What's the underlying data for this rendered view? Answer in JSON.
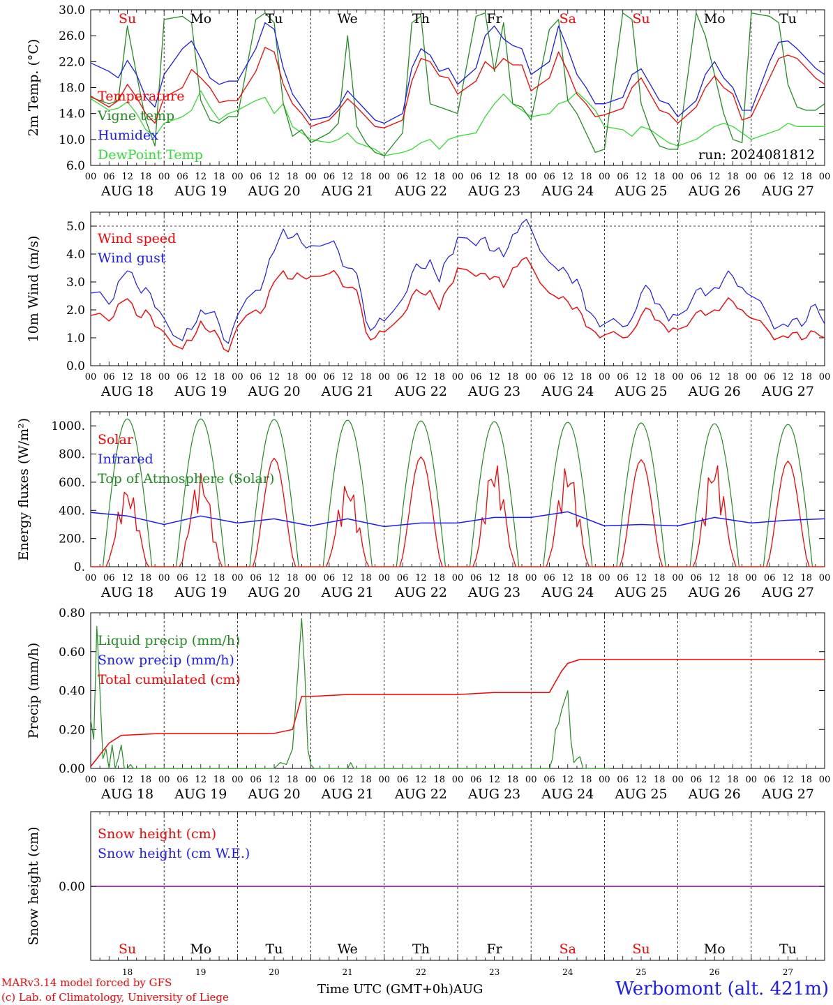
{
  "run_label": "run: 2024081812",
  "x_axis": {
    "hour_ticks": [
      "00",
      "06",
      "12",
      "18"
    ],
    "end_tick": "00",
    "dates": [
      "AUG 18",
      "AUG 19",
      "AUG 20",
      "AUG 21",
      "AUG 22",
      "AUG 23",
      "AUG 24",
      "AUG 25",
      "AUG 26",
      "AUG 27"
    ],
    "weekdays": [
      "Su",
      "Mo",
      "Tu",
      "We",
      "Th",
      "Fr",
      "Sa",
      "Su",
      "Mo",
      "Tu"
    ],
    "bottom_day_numbers": [
      "18",
      "19",
      "20",
      "21",
      "22",
      "23",
      "24",
      "25",
      "26",
      "27"
    ],
    "bottom_month": "AUG",
    "time_label": "Time UTC (GMT+0h)"
  },
  "colors": {
    "red": "#ff0000",
    "green": "#1f8f1f",
    "blue": "#1a1aff",
    "light_green": "#33dd33",
    "purple": "#8800aa",
    "weekend": "#ff0000",
    "weekday": "#000000"
  },
  "footer": {
    "credit_line1": "MARv3.14 model forced by GFS",
    "credit_line2": "(c) Lab. of Climatology, University of Liege",
    "station": "Werbomont (alt. 421m)"
  },
  "chart_data": [
    {
      "type": "line",
      "ylabel": "2m Temp. (°C)",
      "ylim": [
        6,
        30
      ],
      "yticks": [
        6,
        10,
        14,
        18,
        22,
        26,
        30
      ],
      "ytick_labels": [
        "6.0",
        "10.0",
        "14.0",
        "18.0",
        "22.0",
        "26.0",
        "30.0"
      ],
      "x_unit": "hours since AUG 18 00 UTC",
      "x": [
        0,
        6,
        9,
        12,
        15,
        18,
        21,
        24,
        30,
        33,
        36,
        39,
        42,
        45,
        48,
        54,
        57,
        60,
        63,
        66,
        69,
        72,
        78,
        81,
        84,
        87,
        90,
        93,
        96,
        102,
        105,
        108,
        111,
        114,
        117,
        120,
        126,
        129,
        132,
        135,
        138,
        141,
        144,
        150,
        153,
        156,
        159,
        162,
        165,
        168,
        174,
        177,
        180,
        183,
        186,
        189,
        192,
        198,
        201,
        204,
        207,
        210,
        213,
        216,
        222,
        225,
        228,
        231,
        234,
        237,
        240
      ],
      "series": [
        {
          "name": "Temperature",
          "color": "red",
          "values": [
            16.7,
            15.0,
            16.0,
            18.5,
            16.5,
            14.0,
            12.5,
            16.5,
            18.0,
            20.8,
            19.5,
            18.0,
            15.7,
            16.0,
            16.0,
            20.5,
            24.2,
            23.5,
            18.5,
            15.5,
            14.0,
            12.0,
            13.0,
            14.5,
            16.3,
            15.0,
            13.5,
            12.0,
            11.8,
            13.0,
            19.0,
            22.5,
            22.0,
            19.8,
            19.5,
            17.0,
            19.0,
            22.0,
            20.8,
            22.5,
            21.5,
            21.5,
            17.5,
            19.5,
            23.5,
            20.5,
            17.0,
            15.5,
            13.5,
            13.8,
            14.8,
            18.0,
            19.5,
            17.0,
            14.5,
            14.0,
            12.5,
            15.0,
            18.0,
            19.8,
            18.0,
            17.0,
            13.0,
            13.5,
            19.5,
            22.5,
            23.0,
            22.5,
            21.0,
            19.5,
            18.5
          ]
        },
        {
          "name": "Vigne temp",
          "color": "green",
          "values": [
            16.5,
            15.5,
            16.0,
            27.5,
            20.0,
            13.0,
            9.0,
            28.5,
            29.0,
            28.0,
            16.0,
            13.0,
            12.5,
            13.5,
            13.5,
            28.5,
            29.5,
            28.0,
            15.5,
            10.5,
            11.5,
            9.5,
            11.0,
            12.5,
            26.0,
            12.0,
            9.5,
            8.0,
            7.5,
            11.0,
            28.0,
            29.0,
            15.5,
            15.0,
            14.5,
            14.0,
            29.0,
            29.5,
            20.5,
            28.0,
            15.5,
            15.0,
            13.0,
            27.0,
            28.5,
            16.0,
            14.0,
            11.0,
            8.0,
            8.5,
            29.5,
            28.5,
            15.5,
            11.5,
            9.0,
            8.5,
            8.5,
            29.5,
            26.0,
            20.0,
            14.0,
            10.0,
            9.5,
            29.5,
            29.0,
            28.0,
            18.5,
            15.0,
            14.5,
            14.5,
            15.5
          ]
        },
        {
          "name": "Humidex",
          "color": "blue",
          "values": [
            21.8,
            20.5,
            19.5,
            22.2,
            20.0,
            16.5,
            15.0,
            20.0,
            24.0,
            25.2,
            22.5,
            19.5,
            18.5,
            19.0,
            19.0,
            24.0,
            28.0,
            27.0,
            21.0,
            17.0,
            15.0,
            13.0,
            13.5,
            15.0,
            17.5,
            16.0,
            14.5,
            13.0,
            12.5,
            14.0,
            21.0,
            24.0,
            23.0,
            20.5,
            21.0,
            18.5,
            21.0,
            26.0,
            27.5,
            25.5,
            24.5,
            24.0,
            20.0,
            22.0,
            27.5,
            24.0,
            20.0,
            18.0,
            15.5,
            15.5,
            16.5,
            20.0,
            20.9,
            18.5,
            16.0,
            15.5,
            13.5,
            16.0,
            20.0,
            22.0,
            19.5,
            18.0,
            14.5,
            14.5,
            22.0,
            25.0,
            25.2,
            24.0,
            22.5,
            21.0,
            20.0
          ]
        },
        {
          "name": "DewPoint Temp",
          "color": "light_green",
          "values": [
            16.3,
            14.5,
            14.8,
            15.8,
            14.0,
            11.5,
            10.5,
            12.5,
            13.5,
            14.5,
            17.5,
            15.0,
            13.0,
            14.0,
            14.5,
            16.0,
            16.5,
            14.0,
            15.5,
            12.0,
            11.0,
            10.0,
            9.5,
            10.0,
            11.0,
            9.5,
            9.0,
            8.5,
            7.5,
            8.0,
            8.5,
            9.5,
            10.0,
            8.5,
            10.0,
            10.5,
            11.0,
            13.5,
            15.5,
            17.0,
            15.5,
            14.5,
            13.5,
            14.0,
            15.5,
            16.0,
            17.3,
            16.0,
            14.5,
            12.0,
            11.5,
            10.5,
            12.0,
            11.5,
            10.5,
            9.5,
            9.0,
            10.0,
            11.0,
            12.0,
            12.5,
            12.0,
            11.0,
            10.0,
            11.0,
            11.5,
            12.5,
            12.0,
            12.0,
            12.0,
            12.0
          ]
        }
      ]
    },
    {
      "type": "line",
      "ylabel": "10m Wind (m/s)",
      "ylim": [
        0,
        5.5
      ],
      "yticks": [
        0,
        1,
        2,
        3,
        4,
        5
      ],
      "ytick_labels": [
        "0.0",
        "1.0",
        "2.0",
        "3.0",
        "4.0",
        "5.0"
      ],
      "reference_line": 5.0,
      "x_unit": "hours since AUG 18 00 UTC",
      "x": [
        0,
        6,
        9,
        12,
        15,
        18,
        21,
        24,
        30,
        33,
        36,
        39,
        42,
        45,
        48,
        54,
        57,
        60,
        63,
        66,
        69,
        72,
        78,
        81,
        84,
        87,
        90,
        93,
        96,
        102,
        105,
        108,
        111,
        114,
        117,
        120,
        126,
        129,
        132,
        135,
        138,
        141,
        144,
        150,
        153,
        156,
        159,
        162,
        165,
        168,
        174,
        177,
        180,
        183,
        186,
        189,
        192,
        198,
        201,
        204,
        207,
        210,
        213,
        216,
        222,
        225,
        228,
        231,
        234,
        237,
        240
      ],
      "series": [
        {
          "name": "Wind speed",
          "color": "red",
          "values": [
            1.8,
            1.6,
            2.2,
            2.4,
            1.8,
            2.0,
            1.4,
            1.2,
            0.6,
            0.9,
            1.6,
            1.2,
            1.0,
            0.5,
            1.4,
            2.0,
            2.1,
            3.0,
            3.4,
            3.1,
            3.2,
            3.2,
            3.3,
            3.2,
            2.8,
            2.7,
            1.2,
            1.0,
            1.2,
            1.8,
            2.5,
            2.6,
            2.7,
            2.0,
            2.8,
            3.5,
            3.2,
            3.3,
            3.2,
            2.8,
            3.5,
            3.8,
            3.6,
            2.6,
            2.4,
            2.3,
            2.1,
            1.4,
            1.2,
            1.1,
            1.0,
            1.2,
            1.8,
            2.0,
            1.6,
            1.2,
            1.3,
            1.9,
            1.8,
            2.0,
            2.2,
            2.3,
            2.0,
            1.7,
            1.2,
            1.0,
            1.0,
            1.2,
            1.0,
            1.2,
            1.0
          ]
        },
        {
          "name": "Wind gust",
          "color": "blue",
          "values": [
            2.6,
            2.2,
            3.0,
            3.4,
            2.9,
            2.8,
            2.1,
            1.7,
            0.9,
            1.3,
            2.0,
            1.9,
            1.5,
            0.8,
            1.8,
            2.7,
            3.2,
            4.1,
            4.9,
            4.6,
            4.4,
            4.3,
            4.4,
            4.1,
            3.5,
            3.3,
            1.6,
            1.4,
            1.6,
            2.4,
            3.3,
            3.5,
            3.8,
            3.0,
            3.9,
            4.6,
            4.3,
            4.6,
            4.1,
            3.9,
            4.7,
            5.1,
            4.9,
            3.7,
            3.4,
            3.3,
            3.1,
            2.0,
            1.7,
            1.5,
            1.4,
            1.7,
            2.6,
            2.7,
            2.2,
            1.6,
            1.8,
            2.7,
            2.5,
            2.8,
            3.1,
            3.2,
            2.8,
            2.5,
            1.7,
            1.4,
            1.4,
            1.7,
            1.6,
            2.2,
            1.5
          ]
        }
      ]
    },
    {
      "type": "line",
      "ylabel": "Energy fluxes (W/m²)",
      "ylim": [
        0,
        1100
      ],
      "yticks": [
        0,
        200,
        400,
        600,
        800,
        1000
      ],
      "ytick_labels": [
        "0.",
        "200.",
        "400.",
        "600.",
        "800.",
        "1000."
      ],
      "series": [
        {
          "name": "Solar",
          "color": "red",
          "daily_peaks": [
            580,
            670,
            770,
            610,
            780,
            750,
            730,
            760,
            760,
            750
          ]
        },
        {
          "name": "Infrared",
          "color": "blue",
          "x": [
            0,
            12,
            24,
            36,
            48,
            60,
            72,
            84,
            96,
            108,
            120,
            132,
            144,
            156,
            168,
            180,
            192,
            204,
            216,
            228,
            240
          ],
          "values": [
            385,
            360,
            300,
            360,
            310,
            340,
            290,
            340,
            285,
            310,
            310,
            350,
            350,
            390,
            290,
            300,
            290,
            350,
            310,
            330,
            340
          ]
        },
        {
          "name": "Top of Atmosphere (Solar)",
          "color": "green",
          "daily_peaks": [
            1050,
            1050,
            1045,
            1040,
            1035,
            1030,
            1025,
            1020,
            1015,
            1010
          ]
        }
      ]
    },
    {
      "type": "line",
      "ylabel": "Precip (mm/h)",
      "ylim": [
        0,
        0.8
      ],
      "yticks": [
        0,
        0.2,
        0.4,
        0.6,
        0.8
      ],
      "ytick_labels": [
        "0.00",
        "0.20",
        "0.40",
        "0.60",
        "0.80"
      ],
      "series": [
        {
          "name": "Liquid precip (mm/h)",
          "color": "green",
          "x": [
            0,
            1,
            2,
            3,
            4,
            5,
            6,
            7,
            8,
            9,
            10,
            11,
            12,
            13,
            14,
            18,
            24,
            60,
            62,
            64,
            66,
            68,
            69,
            70,
            71,
            72,
            73,
            74,
            84,
            85,
            86,
            150,
            151,
            152,
            153,
            154,
            155,
            156,
            157,
            158,
            159,
            160,
            161,
            162,
            163,
            164,
            165,
            170
          ],
          "values": [
            0.25,
            0.15,
            0.73,
            0.4,
            0.05,
            0.1,
            0.0,
            0.12,
            0.0,
            0.05,
            0.12,
            0.0,
            0.0,
            0.02,
            0.0,
            0.0,
            0.0,
            0.0,
            0.03,
            0.02,
            0.1,
            0.55,
            0.77,
            0.5,
            0.1,
            0.02,
            0.0,
            0.0,
            0.0,
            0.03,
            0.0,
            0.0,
            0.05,
            0.2,
            0.23,
            0.3,
            0.35,
            0.4,
            0.15,
            0.03,
            0.05,
            0.06,
            0.0,
            0.0,
            0.0,
            0.0,
            0.0,
            0.0
          ]
        },
        {
          "name": "Snow precip (mm/h)",
          "color": "blue",
          "values": [
            0
          ]
        },
        {
          "name": "Total cumulated (cm)",
          "color": "red",
          "x": [
            0,
            2,
            6,
            10,
            24,
            48,
            60,
            66,
            69,
            72,
            84,
            96,
            120,
            132,
            144,
            150,
            154,
            156,
            160,
            168,
            240
          ],
          "values": [
            0.01,
            0.05,
            0.13,
            0.17,
            0.18,
            0.18,
            0.18,
            0.2,
            0.37,
            0.37,
            0.38,
            0.38,
            0.38,
            0.39,
            0.39,
            0.39,
            0.5,
            0.54,
            0.56,
            0.56,
            0.56
          ]
        }
      ]
    },
    {
      "type": "line",
      "ylabel": "Snow height (cm)",
      "ytick_labels": [
        "0.00"
      ],
      "series": [
        {
          "name": "Snow height (cm)",
          "color": "red",
          "values": [
            0
          ]
        },
        {
          "name": "Snow height (cm W.E.)",
          "color": "blue",
          "values": [
            0
          ]
        }
      ]
    }
  ]
}
